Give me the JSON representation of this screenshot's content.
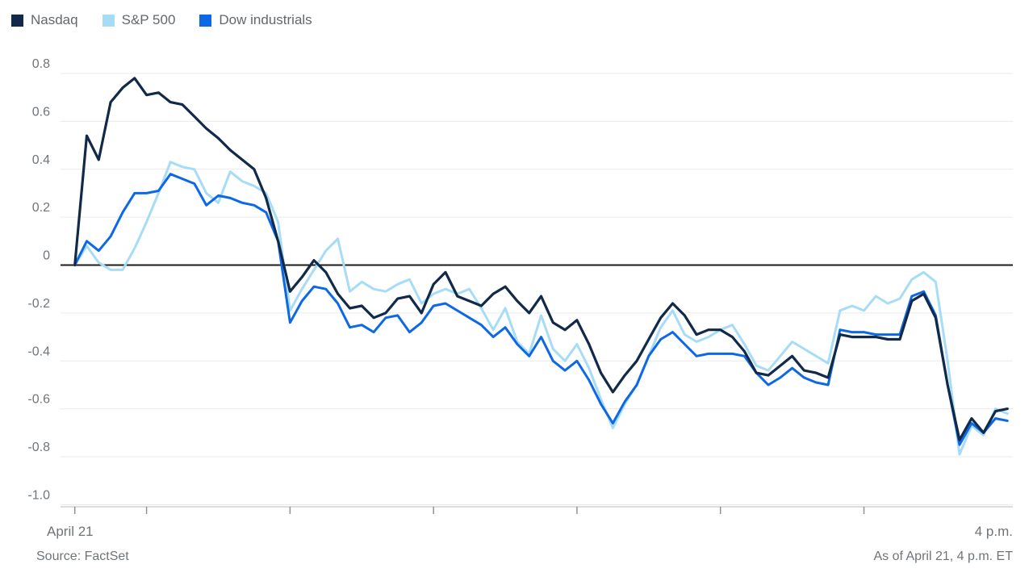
{
  "legend": {
    "items": [
      {
        "label": "Nasdaq",
        "color": "#112a49"
      },
      {
        "label": "S&P 500",
        "color": "#a6dcf6"
      },
      {
        "label": "Dow industrials",
        "color": "#0d68e8"
      }
    ]
  },
  "footer": {
    "x_start_label": "April 21",
    "x_end_label": "4 p.m.",
    "source": "Source: FactSet",
    "as_of": "As of April 21, 4 p.m. ET"
  },
  "colors": {
    "grid": "#e9eaea",
    "zero_line": "#1b1b1b",
    "axis_line": "#cfd2d3",
    "tick": "#8d9397",
    "axis_text": "#6f757a"
  },
  "chart_data": {
    "type": "line",
    "title": "",
    "xlabel": "",
    "ylabel": "",
    "ylim": [
      -1.0,
      0.8
    ],
    "y_ticks": [
      0.8,
      0.6,
      0.4,
      0.2,
      0,
      -0.2,
      -0.4,
      -0.6,
      -0.8,
      -1.0
    ],
    "x_axis": {
      "start_label": "April 21",
      "end_label": "4 p.m.",
      "tick_minutes_after_930": [
        0,
        30,
        90,
        150,
        210,
        270,
        330
      ],
      "total_minutes": 390
    },
    "x_step_minutes": 5,
    "x_start_minute": 0,
    "grid": true,
    "legend_position": "top-left",
    "series": [
      {
        "name": "S&P 500",
        "color": "#a6dcf6",
        "values": [
          0,
          0.08,
          0.01,
          -0.02,
          -0.02,
          0.07,
          0.18,
          0.3,
          0.43,
          0.41,
          0.4,
          0.3,
          0.26,
          0.39,
          0.35,
          0.33,
          0.3,
          0.18,
          -0.19,
          -0.1,
          -0.02,
          0.06,
          0.11,
          -0.11,
          -0.07,
          -0.1,
          -0.11,
          -0.08,
          -0.06,
          -0.16,
          -0.12,
          -0.1,
          -0.12,
          -0.1,
          -0.18,
          -0.27,
          -0.18,
          -0.32,
          -0.37,
          -0.21,
          -0.35,
          -0.4,
          -0.33,
          -0.43,
          -0.56,
          -0.68,
          -0.58,
          -0.5,
          -0.38,
          -0.26,
          -0.19,
          -0.29,
          -0.32,
          -0.3,
          -0.27,
          -0.25,
          -0.33,
          -0.42,
          -0.44,
          -0.38,
          -0.32,
          -0.35,
          -0.38,
          -0.41,
          -0.19,
          -0.17,
          -0.19,
          -0.13,
          -0.16,
          -0.14,
          -0.06,
          -0.03,
          -0.07,
          -0.4,
          -0.79,
          -0.67,
          -0.71,
          -0.6,
          -0.62
        ]
      },
      {
        "name": "Dow industrials",
        "color": "#0d68e8",
        "values": [
          0,
          0.1,
          0.06,
          0.12,
          0.22,
          0.3,
          0.3,
          0.31,
          0.38,
          0.36,
          0.34,
          0.25,
          0.29,
          0.28,
          0.26,
          0.25,
          0.22,
          0.1,
          -0.24,
          -0.15,
          -0.09,
          -0.1,
          -0.16,
          -0.26,
          -0.25,
          -0.28,
          -0.22,
          -0.21,
          -0.28,
          -0.24,
          -0.17,
          -0.16,
          -0.19,
          -0.22,
          -0.25,
          -0.3,
          -0.26,
          -0.33,
          -0.38,
          -0.3,
          -0.4,
          -0.44,
          -0.4,
          -0.48,
          -0.58,
          -0.66,
          -0.57,
          -0.5,
          -0.38,
          -0.31,
          -0.28,
          -0.33,
          -0.38,
          -0.37,
          -0.37,
          -0.37,
          -0.38,
          -0.45,
          -0.5,
          -0.47,
          -0.43,
          -0.47,
          -0.49,
          -0.5,
          -0.27,
          -0.28,
          -0.28,
          -0.29,
          -0.29,
          -0.29,
          -0.13,
          -0.11,
          -0.21,
          -0.5,
          -0.75,
          -0.66,
          -0.7,
          -0.64,
          -0.65
        ]
      },
      {
        "name": "Nasdaq",
        "color": "#112a49",
        "values": [
          0,
          0.54,
          0.44,
          0.68,
          0.74,
          0.78,
          0.71,
          0.72,
          0.68,
          0.67,
          0.62,
          0.57,
          0.53,
          0.48,
          0.44,
          0.4,
          0.28,
          0.1,
          -0.11,
          -0.05,
          0.02,
          -0.03,
          -0.12,
          -0.18,
          -0.17,
          -0.22,
          -0.2,
          -0.14,
          -0.13,
          -0.2,
          -0.08,
          -0.03,
          -0.13,
          -0.15,
          -0.17,
          -0.12,
          -0.09,
          -0.15,
          -0.2,
          -0.13,
          -0.24,
          -0.27,
          -0.23,
          -0.33,
          -0.45,
          -0.53,
          -0.46,
          -0.4,
          -0.31,
          -0.22,
          -0.16,
          -0.21,
          -0.29,
          -0.27,
          -0.27,
          -0.3,
          -0.36,
          -0.45,
          -0.46,
          -0.42,
          -0.38,
          -0.44,
          -0.45,
          -0.47,
          -0.29,
          -0.3,
          -0.3,
          -0.3,
          -0.31,
          -0.31,
          -0.15,
          -0.12,
          -0.22,
          -0.5,
          -0.73,
          -0.64,
          -0.7,
          -0.61,
          -0.6
        ]
      }
    ]
  }
}
